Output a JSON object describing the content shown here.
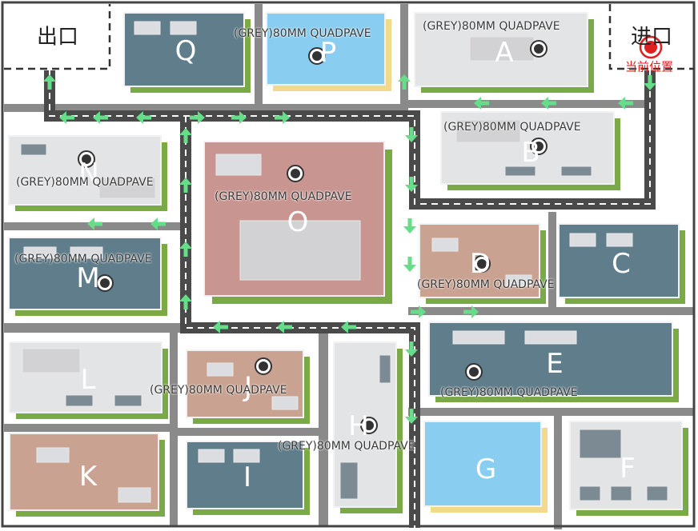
{
  "exit_label": "出口",
  "entrance_label": "进口",
  "current_position_label": "当前位置",
  "colors": {
    "road": "#4a4a4a",
    "divider": "#8a8a8a",
    "path_arrow": "#66dd88",
    "slate": "#607d8b",
    "light": "#e3e4e6",
    "rose": "#c99590",
    "tan": "#c9a291",
    "sky": "#89cdf1",
    "green_shadow": "#7aaa46",
    "yellow_shadow": "#f2d98b",
    "marker_red": "#e02020"
  },
  "buildings": [
    {
      "id": "Q",
      "color": "slate",
      "tag": ""
    },
    {
      "id": "P",
      "color": "sky",
      "tag": "(GREY)80MM QUADPAVE"
    },
    {
      "id": "A",
      "color": "light",
      "tag": "(GREY)80MM QUADPAVE"
    },
    {
      "id": "B",
      "color": "light",
      "tag": "(GREY)80MM QUADPAVE"
    },
    {
      "id": "N",
      "color": "light",
      "tag": "(GREY)80MM QUADPAVE"
    },
    {
      "id": "O",
      "color": "rose",
      "tag": "(GREY)80MM QUADPAVE"
    },
    {
      "id": "M",
      "color": "slate",
      "tag": "(GREY)80MM QUADPAVE"
    },
    {
      "id": "D",
      "color": "tan",
      "tag": "(GREY)80MM QUADPAVE"
    },
    {
      "id": "C",
      "color": "slate",
      "tag": ""
    },
    {
      "id": "E",
      "color": "slate",
      "tag": "(GREY)80MM QUADPAVE"
    },
    {
      "id": "L",
      "color": "light",
      "tag": ""
    },
    {
      "id": "J",
      "color": "tan",
      "tag": "(GREY)80MM QUADPAVE"
    },
    {
      "id": "H",
      "color": "light",
      "tag": "(GREY)80MM QUADPAVE"
    },
    {
      "id": "K",
      "color": "tan",
      "tag": ""
    },
    {
      "id": "I",
      "color": "slate",
      "tag": ""
    },
    {
      "id": "G",
      "color": "sky",
      "tag": ""
    },
    {
      "id": "F",
      "color": "light",
      "tag": ""
    }
  ]
}
